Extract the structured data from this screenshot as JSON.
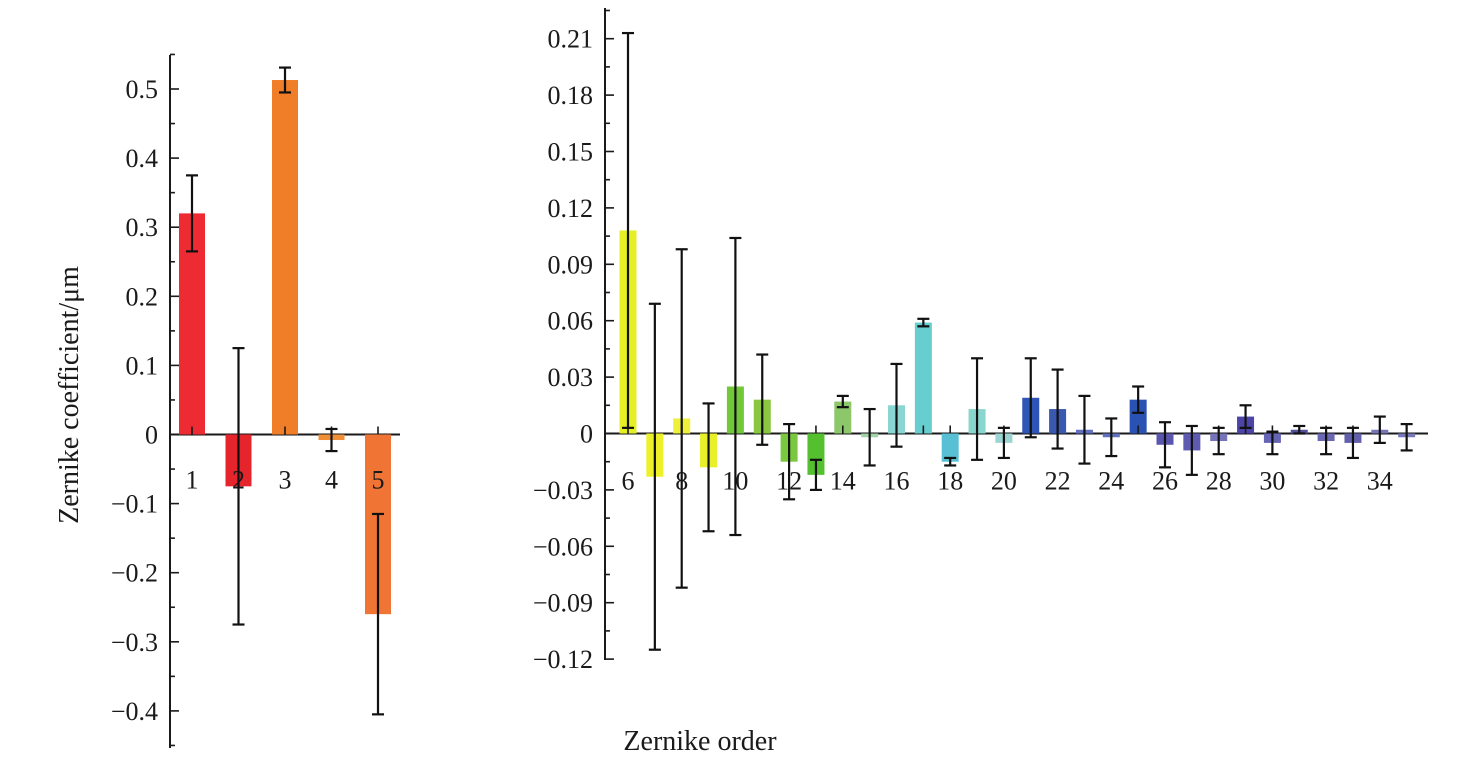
{
  "chart_data": [
    {
      "type": "bar",
      "categories": [
        "1",
        "2",
        "3",
        "4",
        "5"
      ],
      "values": [
        0.32,
        -0.075,
        0.513,
        -0.008,
        -0.26
      ],
      "errors": [
        0.055,
        0.2,
        0.018,
        0.016,
        0.145
      ],
      "colors": [
        "#ee2a33",
        "#e5242c",
        "#f07e28",
        "#f08f38",
        "#f07535"
      ],
      "ylim": [
        -0.45,
        0.55
      ],
      "yticks": [
        -0.4,
        -0.3,
        -0.2,
        -0.1,
        0,
        0.1,
        0.2,
        0.3,
        0.4,
        0.5
      ],
      "ytick_labels": [
        "−0.4",
        "−0.3",
        "−0.2",
        "−0.1",
        "0",
        "0.1",
        "0.2",
        "0.3",
        "0.4",
        "0.5"
      ],
      "ylabel": "Zernike coefficient/μm",
      "xlabel": ""
    },
    {
      "type": "bar",
      "categories": [
        "6",
        "7",
        "8",
        "9",
        "10",
        "11",
        "12",
        "13",
        "14",
        "15",
        "16",
        "17",
        "18",
        "19",
        "20",
        "21",
        "22",
        "23",
        "24",
        "25",
        "26",
        "27",
        "28",
        "29",
        "30",
        "31",
        "32",
        "33",
        "34",
        "35"
      ],
      "category_labels": [
        "6",
        "",
        "8",
        "",
        "10",
        "",
        "12",
        "",
        "14",
        "",
        "16",
        "",
        "18",
        "",
        "20",
        "",
        "22",
        "",
        "24",
        "",
        "26",
        "",
        "28",
        "",
        "30",
        "",
        "32",
        "",
        "34",
        ""
      ],
      "values": [
        0.108,
        -0.023,
        0.008,
        -0.018,
        0.025,
        0.018,
        -0.015,
        -0.022,
        0.017,
        -0.002,
        0.015,
        0.059,
        -0.015,
        0.013,
        -0.005,
        0.019,
        0.013,
        0.002,
        -0.002,
        0.018,
        -0.006,
        -0.009,
        -0.004,
        0.009,
        -0.005,
        0.002,
        -0.004,
        -0.005,
        0.002,
        -0.002
      ],
      "errors": [
        0.105,
        0.092,
        0.09,
        0.034,
        0.079,
        0.024,
        0.02,
        0.008,
        0.003,
        0.015,
        0.022,
        0.002,
        0.002,
        0.027,
        0.008,
        0.021,
        0.021,
        0.018,
        0.01,
        0.007,
        0.012,
        0.013,
        0.007,
        0.006,
        0.006,
        0.002,
        0.007,
        0.008,
        0.007,
        0.007
      ],
      "colors": [
        "#e4f024",
        "#eef028",
        "#eef03a",
        "#e8f02a",
        "#72c838",
        "#8ac640",
        "#7ac840",
        "#54c030",
        "#8cc86a",
        "#a2d2a8",
        "#8ad6d2",
        "#66cece",
        "#58c0d4",
        "#88d6ce",
        "#9cd6d2",
        "#2e54b8",
        "#3a58b0",
        "#6272c0",
        "#6070bc",
        "#2a52b2",
        "#5a56b0",
        "#5e5ab2",
        "#7674b8",
        "#4c44a6",
        "#6664b4",
        "#52509a",
        "#6a68b0",
        "#6260ac",
        "#7676b6",
        "#7878b8"
      ],
      "ylim": [
        -0.12,
        0.225
      ],
      "yticks": [
        -0.12,
        -0.09,
        -0.06,
        -0.03,
        0,
        0.03,
        0.06,
        0.09,
        0.12,
        0.15,
        0.18,
        0.21
      ],
      "ytick_labels": [
        "−0.12",
        "−0.09",
        "−0.06",
        "−0.03",
        "0",
        "0.03",
        "0.06",
        "0.09",
        "0.12",
        "0.15",
        "0.18",
        "0.21"
      ],
      "xlabel": "Zernike order",
      "ylabel": ""
    }
  ]
}
